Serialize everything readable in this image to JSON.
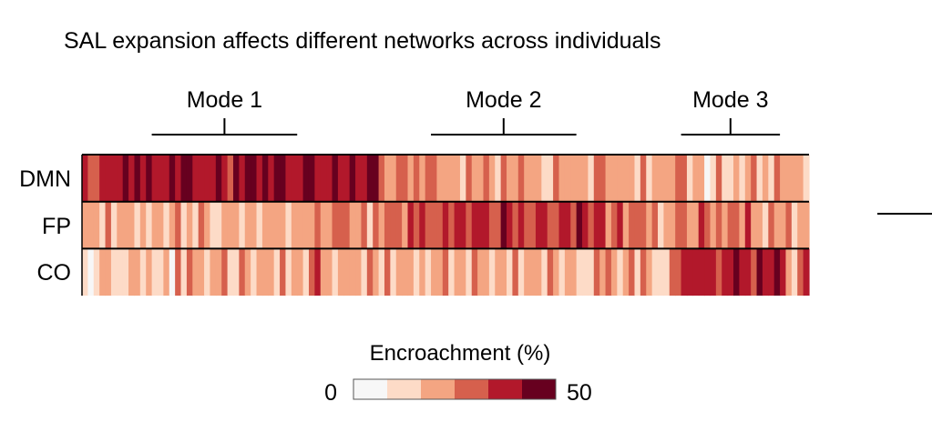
{
  "chart_data": {
    "type": "heatmap",
    "title": "SAL expansion affects different networks across individuals",
    "rows": [
      "DMN",
      "FP",
      "CO"
    ],
    "n_individuals": 125,
    "value_unit": "Encroachment (%)",
    "modes": [
      {
        "label": "Mode 1",
        "start": 12,
        "end": 37
      },
      {
        "label": "Mode 2",
        "start": 60,
        "end": 85
      },
      {
        "label": "Mode 3",
        "start": 103,
        "end": 120
      }
    ],
    "colorbar": {
      "title": "Encroachment (%)",
      "min_label": "0",
      "max_label": "50",
      "range": [
        0,
        50
      ],
      "colors": [
        "#f7f7f7",
        "#fddbc7",
        "#f4a582",
        "#d6604d",
        "#b2182b",
        "#67001f"
      ]
    },
    "matrix_levels": [
      [
        4,
        3,
        3,
        4,
        4,
        4,
        4,
        5,
        4,
        5,
        4,
        5,
        4,
        4,
        4,
        5,
        4,
        5,
        5,
        4,
        4,
        4,
        4,
        5,
        4,
        3,
        5,
        4,
        5,
        5,
        4,
        5,
        4,
        5,
        5,
        4,
        4,
        4,
        5,
        5,
        4,
        4,
        4,
        5,
        4,
        4,
        5,
        4,
        4,
        5,
        5,
        3,
        2,
        2,
        3,
        3,
        2,
        3,
        2,
        3,
        3,
        2,
        2,
        2,
        2,
        1,
        3,
        2,
        2,
        3,
        2,
        1,
        3,
        2,
        2,
        3,
        2,
        2,
        2,
        1,
        1,
        3,
        2,
        2,
        2,
        2,
        2,
        1,
        3,
        3,
        2,
        2,
        2,
        2,
        2,
        1,
        3,
        1,
        2,
        2,
        2,
        2,
        3,
        3,
        1,
        2,
        2,
        0,
        1,
        3,
        1,
        1,
        2,
        1,
        2,
        3,
        1,
        2,
        1,
        3,
        2,
        2,
        2,
        2,
        1
      ],
      [
        2,
        2,
        2,
        1,
        3,
        1,
        2,
        2,
        2,
        1,
        2,
        1,
        2,
        2,
        1,
        2,
        3,
        1,
        2,
        1,
        3,
        2,
        1,
        1,
        2,
        2,
        2,
        1,
        2,
        2,
        1,
        2,
        2,
        2,
        2,
        1,
        2,
        2,
        2,
        2,
        3,
        2,
        2,
        3,
        3,
        3,
        2,
        2,
        3,
        1,
        3,
        2,
        3,
        3,
        3,
        2,
        4,
        3,
        4,
        3,
        3,
        3,
        4,
        3,
        4,
        4,
        3,
        4,
        4,
        4,
        3,
        3,
        5,
        4,
        3,
        4,
        3,
        3,
        4,
        4,
        3,
        3,
        4,
        4,
        3,
        5,
        4,
        3,
        4,
        4,
        2,
        3,
        4,
        2,
        3,
        3,
        3,
        2,
        3,
        1,
        2,
        2,
        3,
        3,
        2,
        2,
        4,
        3,
        2,
        3,
        2,
        3,
        3,
        2,
        4,
        2,
        2,
        1,
        3,
        2,
        2,
        3,
        1,
        2,
        2
      ],
      [
        1,
        0,
        1,
        2,
        2,
        1,
        1,
        1,
        2,
        2,
        1,
        2,
        1,
        1,
        2,
        0,
        3,
        1,
        3,
        2,
        2,
        1,
        2,
        2,
        3,
        1,
        1,
        3,
        2,
        1,
        2,
        2,
        2,
        1,
        3,
        1,
        2,
        2,
        1,
        3,
        4,
        2,
        2,
        1,
        2,
        2,
        2,
        2,
        1,
        3,
        2,
        1,
        3,
        1,
        2,
        2,
        2,
        1,
        2,
        1,
        2,
        2,
        3,
        1,
        2,
        2,
        1,
        3,
        2,
        2,
        1,
        2,
        2,
        1,
        3,
        1,
        2,
        2,
        2,
        1,
        3,
        2,
        1,
        2,
        2,
        1,
        1,
        1,
        3,
        2,
        3,
        2,
        1,
        2,
        3,
        1,
        3,
        2,
        1,
        1,
        1,
        3,
        3,
        4,
        4,
        4,
        4,
        4,
        4,
        3,
        4,
        4,
        5,
        4,
        4,
        3,
        5,
        4,
        4,
        5,
        4,
        2,
        1,
        3,
        4
      ]
    ]
  },
  "extra": {
    "right_edge_line": ""
  }
}
